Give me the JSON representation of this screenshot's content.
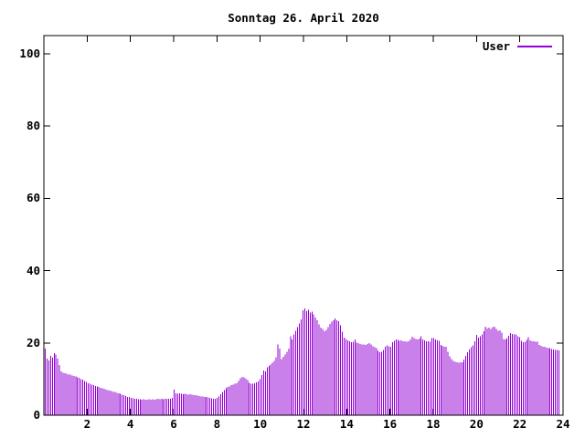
{
  "window": {
    "background": "#ffffff"
  },
  "colors": {
    "axis": "#000000",
    "text": "#000000",
    "series_user": "#9400D3"
  },
  "chart_data": {
    "type": "bar",
    "style": "impulses",
    "title": "Sonntag 26. April 2020",
    "xlabel": "",
    "ylabel": "",
    "x_unit": "hour of day",
    "xlim": [
      0,
      24
    ],
    "ylim": [
      0,
      100
    ],
    "xticks": [
      2,
      4,
      6,
      8,
      10,
      12,
      14,
      16,
      18,
      20,
      22,
      24
    ],
    "xtick_labels": [
      "2",
      "4",
      "6",
      "8",
      "10",
      "12",
      "14",
      "16",
      "18",
      "20",
      "22",
      "24"
    ],
    "yticks": [
      0,
      20,
      40,
      60,
      80,
      100
    ],
    "ytick_labels": [
      "0",
      "20",
      "40",
      "60",
      "80",
      "100"
    ],
    "grid": false,
    "legend": {
      "position": "top-right-inside",
      "entries": [
        {
          "label": "User",
          "color": "#9400D3"
        }
      ]
    },
    "series": [
      {
        "name": "User",
        "color": "#9400D3",
        "x_start_hour": 0.0833,
        "x_step_hours": 0.0833,
        "values": [
          18.4,
          15.6,
          15.2,
          16.4,
          15.9,
          17.2,
          16.8,
          15.6,
          13.9,
          12.1,
          11.8,
          11.6,
          11.5,
          11.3,
          11.2,
          11.0,
          10.9,
          10.7,
          10.5,
          10.3,
          10.0,
          9.8,
          9.5,
          9.2,
          8.9,
          8.7,
          8.5,
          8.3,
          8.1,
          8.0,
          7.8,
          7.6,
          7.4,
          7.3,
          7.1,
          7.0,
          6.8,
          6.7,
          6.5,
          6.4,
          6.2,
          6.0,
          5.9,
          5.7,
          5.5,
          5.3,
          5.1,
          5.0,
          4.8,
          4.7,
          4.6,
          4.5,
          4.4,
          4.4,
          4.3,
          4.4,
          4.3,
          4.3,
          4.4,
          4.3,
          4.4,
          4.3,
          4.4,
          4.5,
          4.4,
          4.5,
          4.4,
          4.5,
          4.6,
          4.5,
          4.6,
          4.8,
          7.1,
          6.0,
          5.9,
          6.0,
          5.9,
          5.8,
          5.9,
          5.8,
          5.7,
          5.8,
          5.7,
          5.6,
          5.5,
          5.4,
          5.3,
          5.2,
          5.2,
          5.1,
          5.0,
          4.9,
          4.8,
          4.7,
          4.6,
          4.6,
          4.8,
          5.2,
          5.8,
          6.4,
          6.9,
          7.4,
          7.8,
          8.0,
          8.3,
          8.5,
          8.7,
          8.8,
          9.5,
          10.2,
          10.6,
          10.5,
          10.1,
          9.7,
          9.0,
          8.7,
          8.7,
          8.9,
          9.1,
          9.3,
          10.0,
          11.1,
          12.4,
          12.1,
          13.2,
          13.6,
          14.0,
          14.5,
          15.0,
          16.0,
          19.6,
          18.4,
          15.5,
          16.1,
          16.8,
          17.5,
          18.4,
          21.9,
          21.0,
          22.4,
          23.4,
          24.4,
          25.4,
          26.5,
          29.0,
          29.6,
          28.8,
          29.2,
          28.4,
          28.7,
          27.9,
          27.0,
          26.2,
          25.1,
          24.3,
          23.9,
          23.2,
          23.6,
          24.4,
          25.3,
          25.9,
          26.3,
          26.8,
          26.3,
          26.0,
          24.9,
          23.1,
          21.5,
          21.1,
          20.7,
          20.4,
          20.2,
          20.3,
          21.0,
          20.1,
          19.9,
          19.7,
          19.6,
          19.6,
          19.5,
          19.7,
          19.9,
          19.6,
          19.1,
          18.8,
          18.5,
          17.8,
          17.4,
          17.5,
          18.1,
          18.9,
          19.3,
          19.1,
          18.9,
          20.2,
          20.6,
          20.9,
          20.8,
          20.6,
          20.7,
          20.5,
          20.4,
          20.3,
          20.4,
          21.0,
          21.7,
          21.4,
          21.1,
          20.9,
          21.2,
          21.8,
          21.0,
          20.7,
          20.5,
          20.4,
          20.3,
          21.3,
          21.4,
          20.9,
          20.7,
          20.6,
          19.4,
          19.2,
          19.0,
          18.9,
          17.5,
          16.3,
          15.5,
          15.0,
          14.8,
          14.6,
          14.5,
          14.6,
          14.7,
          15.4,
          16.4,
          17.4,
          18.2,
          18.8,
          19.3,
          20.5,
          22.2,
          21.5,
          21.9,
          22.4,
          23.2,
          24.5,
          24.0,
          24.3,
          23.9,
          24.4,
          24.5,
          23.9,
          23.4,
          23.5,
          22.8,
          21.1,
          20.9,
          21.4,
          22.0,
          22.7,
          22.5,
          22.4,
          22.3,
          21.8,
          21.6,
          20.6,
          20.2,
          20.3,
          20.8,
          21.6,
          20.7,
          20.5,
          20.4,
          20.3,
          20.3,
          19.5,
          19.2,
          19.0,
          18.9,
          18.7,
          18.6,
          18.5,
          18.3,
          18.2,
          18.1,
          18.0,
          17.9
        ]
      }
    ]
  }
}
